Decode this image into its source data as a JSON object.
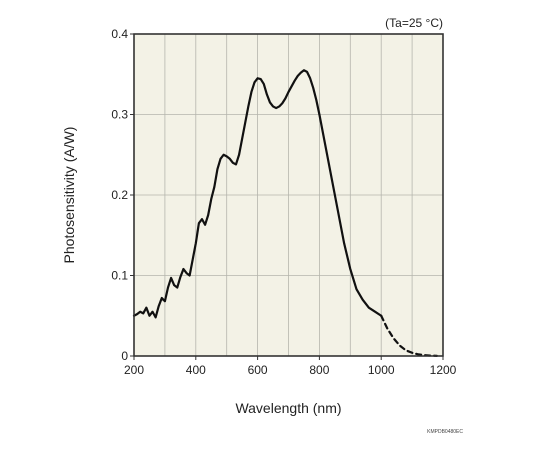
{
  "chart_data": {
    "type": "line",
    "title": "",
    "xlabel": "Wavelength (nm)",
    "ylabel": "Photosensitivity (A/W)",
    "xlim": [
      200,
      1200
    ],
    "ylim": [
      0,
      0.4
    ],
    "xticks": [
      200,
      400,
      600,
      800,
      1000,
      1200
    ],
    "yticks": [
      0,
      0.1,
      0.2,
      0.3,
      0.4
    ],
    "xtick_labels": [
      "200",
      "400",
      "600",
      "800",
      "1000",
      "1200"
    ],
    "ytick_labels": [
      "0",
      "0.1",
      "0.2",
      "0.3",
      "0.4"
    ],
    "grid": true,
    "x_grid_step": 100,
    "y_grid_step": 0.1,
    "annotation": "(Ta=25 °C)",
    "code": "KMPDB0480EC",
    "colors": {
      "background": "#f3f2e6",
      "line": "#111111",
      "grid": "#b5b5ad",
      "frame": "#333333"
    },
    "series": [
      {
        "style": "solid",
        "x": [
          200,
          210,
          220,
          230,
          240,
          250,
          260,
          270,
          280,
          290,
          300,
          310,
          320,
          330,
          340,
          350,
          360,
          370,
          380,
          390,
          400,
          410,
          420,
          430,
          440,
          450,
          460,
          470,
          480,
          490,
          500,
          510,
          520,
          530,
          540,
          550,
          560,
          570,
          580,
          590,
          600,
          610,
          620,
          630,
          640,
          650,
          660,
          670,
          680,
          690,
          700,
          710,
          720,
          730,
          740,
          750,
          760,
          770,
          780,
          790,
          800,
          820,
          840,
          860,
          880,
          900,
          920,
          940,
          960,
          980,
          1000
        ],
        "y": [
          0.05,
          0.052,
          0.055,
          0.053,
          0.06,
          0.05,
          0.055,
          0.048,
          0.062,
          0.072,
          0.068,
          0.085,
          0.097,
          0.088,
          0.085,
          0.098,
          0.108,
          0.103,
          0.1,
          0.12,
          0.14,
          0.165,
          0.17,
          0.163,
          0.175,
          0.195,
          0.21,
          0.232,
          0.245,
          0.25,
          0.248,
          0.245,
          0.24,
          0.238,
          0.25,
          0.27,
          0.29,
          0.31,
          0.328,
          0.34,
          0.345,
          0.344,
          0.338,
          0.325,
          0.315,
          0.31,
          0.308,
          0.31,
          0.314,
          0.32,
          0.328,
          0.335,
          0.342,
          0.348,
          0.352,
          0.355,
          0.353,
          0.345,
          0.333,
          0.318,
          0.3,
          0.26,
          0.22,
          0.18,
          0.14,
          0.108,
          0.083,
          0.07,
          0.06,
          0.055,
          0.05
        ]
      },
      {
        "style": "dashed",
        "x": [
          1000,
          1020,
          1040,
          1060,
          1080,
          1100,
          1120,
          1140,
          1160,
          1180
        ],
        "y": [
          0.05,
          0.034,
          0.022,
          0.013,
          0.007,
          0.004,
          0.002,
          0.001,
          0.0005,
          0.0002
        ]
      }
    ]
  }
}
